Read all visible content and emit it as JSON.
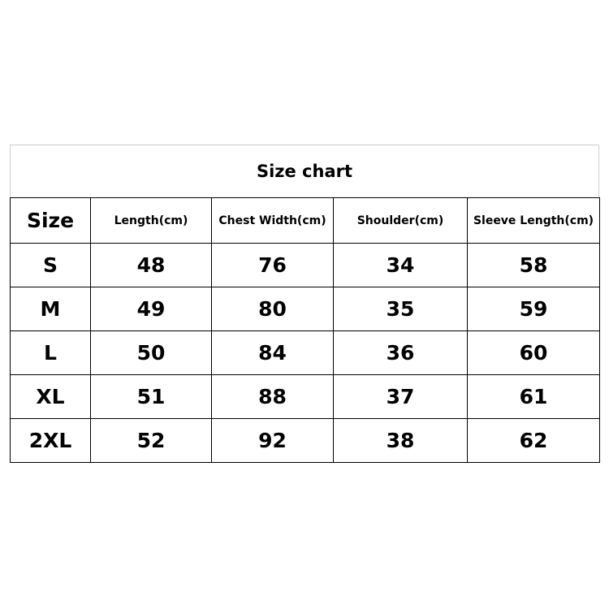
{
  "title": "Size chart",
  "headers": [
    "Size",
    "Length(cm)",
    "Chest Width(cm)",
    "Shoulder(cm)",
    "Sleeve Length(cm)"
  ],
  "rows": [
    [
      "S",
      "48",
      "76",
      "34",
      "58"
    ],
    [
      "M",
      "49",
      "80",
      "35",
      "59"
    ],
    [
      "L",
      "50",
      "84",
      "36",
      "60"
    ],
    [
      "XL",
      "51",
      "88",
      "37",
      "61"
    ],
    [
      "2XL",
      "52",
      "92",
      "38",
      "62"
    ]
  ]
}
